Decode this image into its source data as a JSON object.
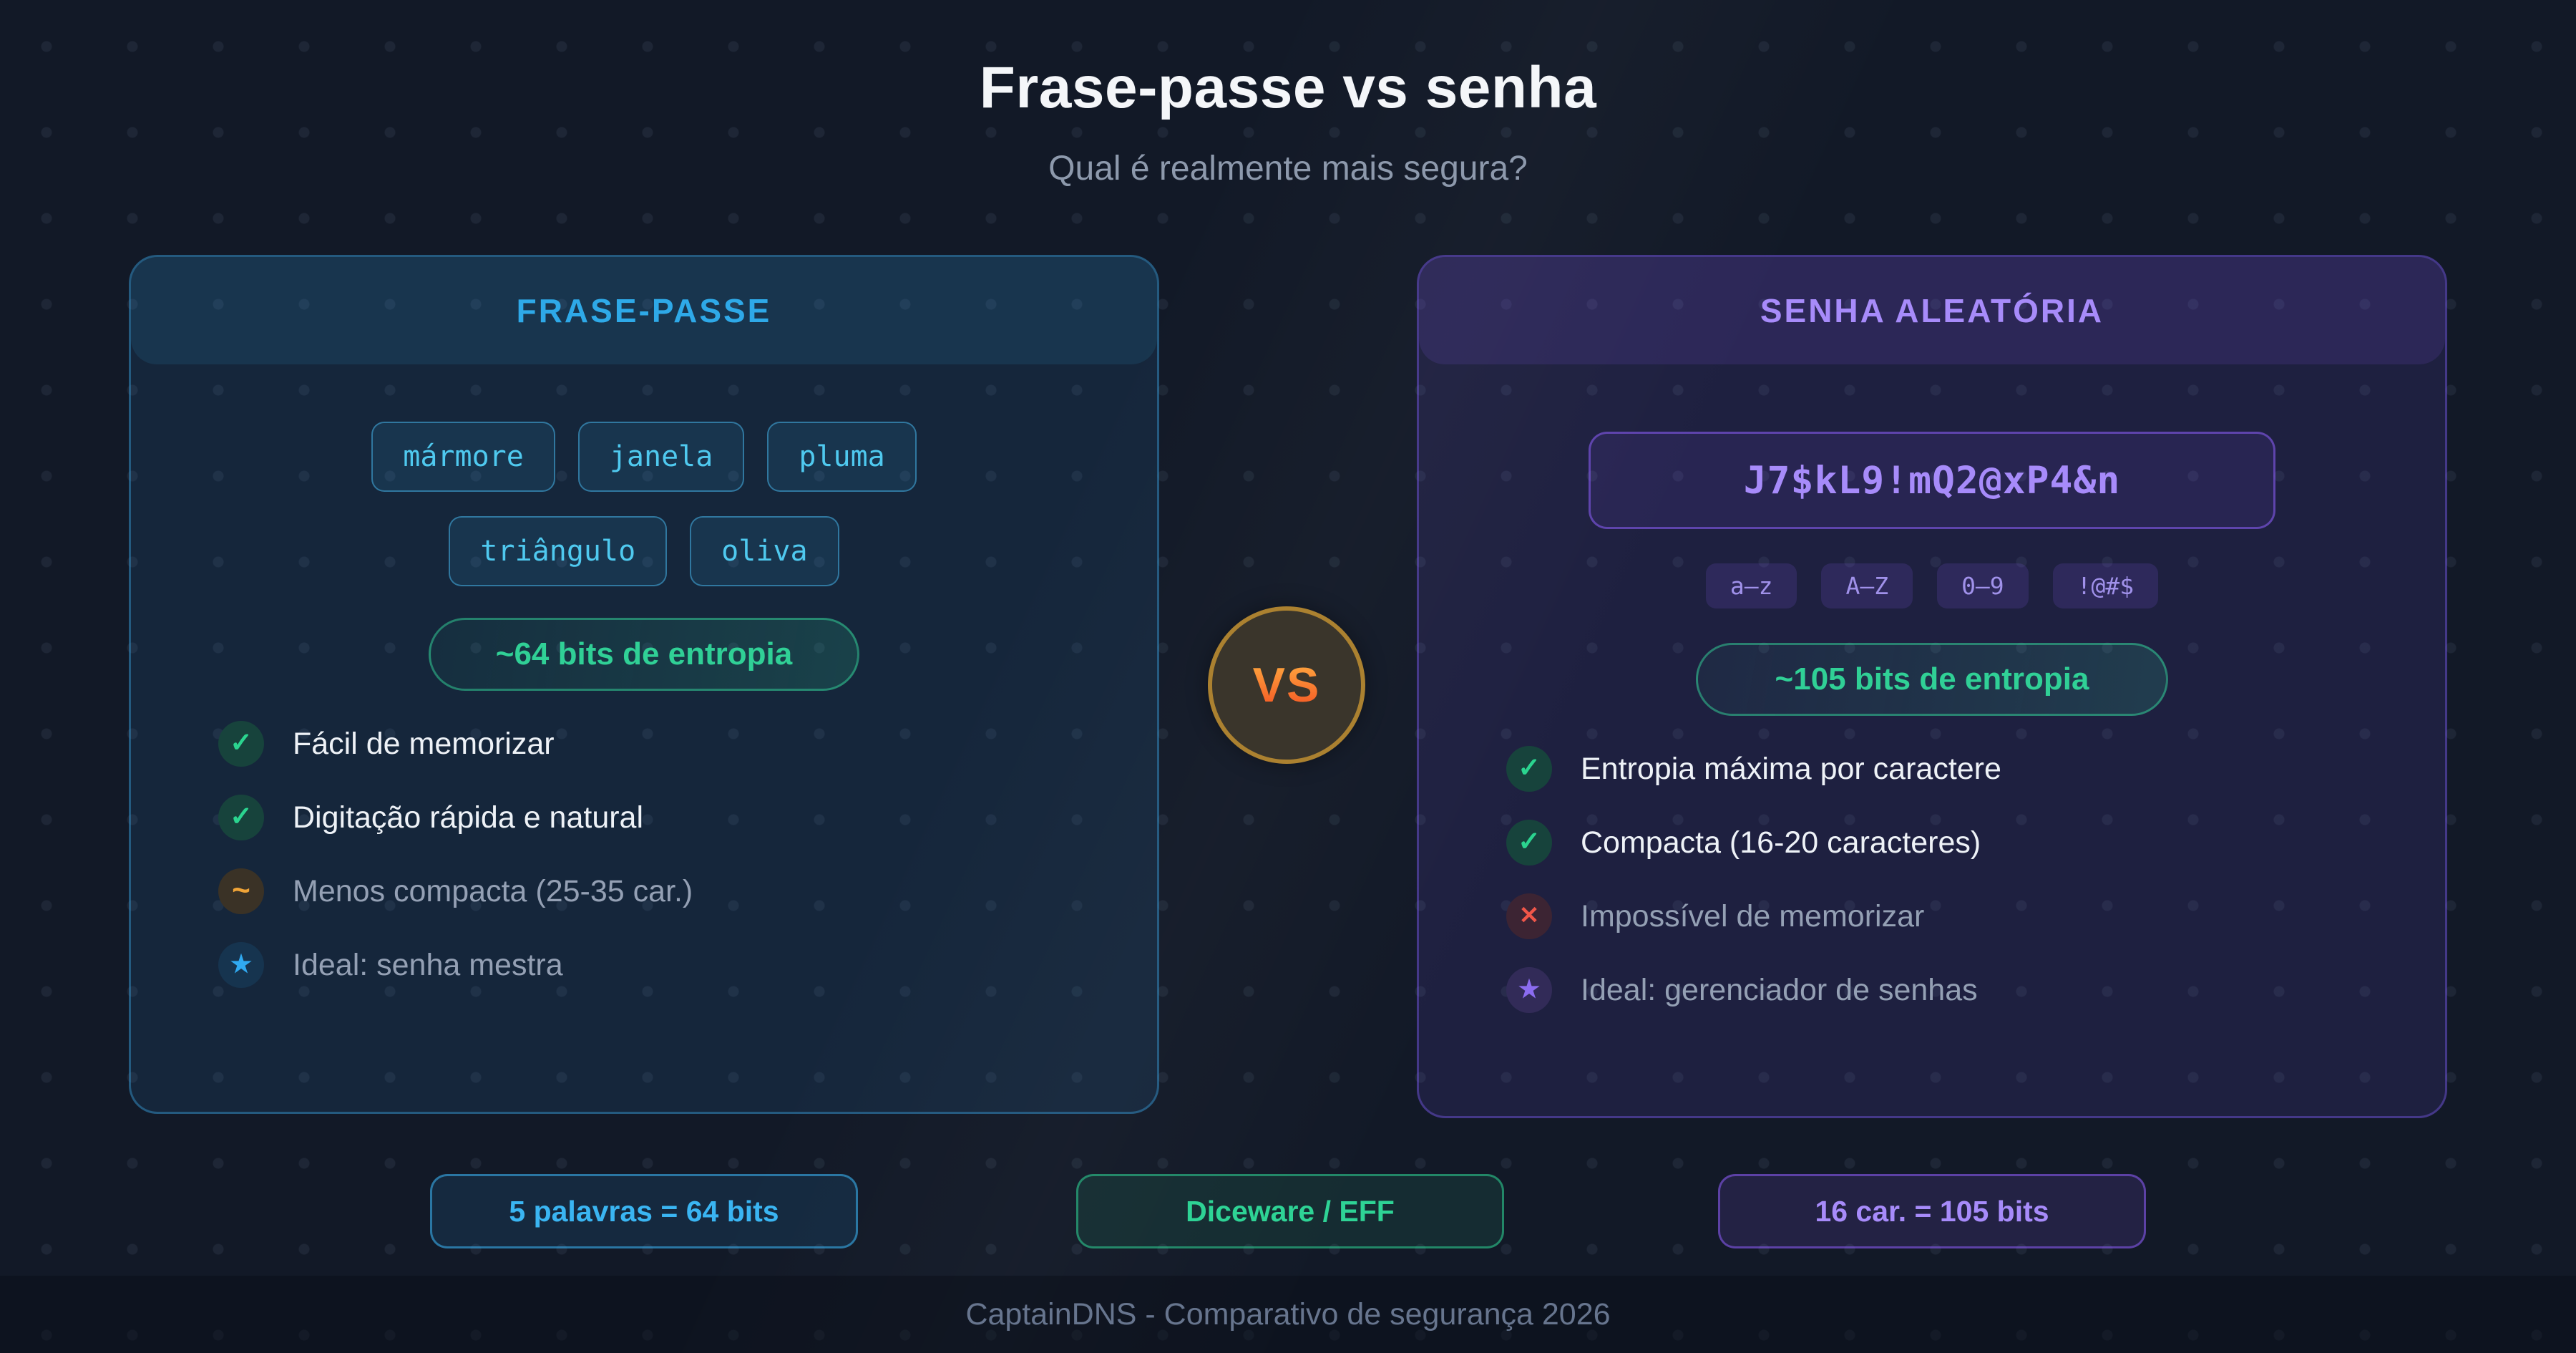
{
  "page": {
    "title": "Frase-passe vs senha",
    "subtitle": "Qual é realmente mais segura?",
    "vs_label": "VS",
    "footer": "CaptainDNS - Comparativo de segurança 2026"
  },
  "icons": {
    "check": "✓",
    "tilde": "~",
    "cross": "✕",
    "star": "★"
  },
  "accents": {
    "cyan": "#2ea9e8",
    "purple": "#a78bfa",
    "green": "#30d096",
    "orange": "#f0a437",
    "red": "#ef5649",
    "vs_gradient_top": "#ffb042",
    "vs_gradient_bottom": "#f34f21",
    "background": "#121927"
  },
  "left_card": {
    "header": "FRASE-PASSE",
    "words": [
      "mármore",
      "janela",
      "pluma",
      "triângulo",
      "oliva"
    ],
    "entropy_badge": "~64 bits de entropia",
    "items": [
      {
        "icon": "check",
        "text": "Fácil de memorizar"
      },
      {
        "icon": "check",
        "text": "Digitação rápida e natural"
      },
      {
        "icon": "tilde",
        "text": "Menos compacta (25-35 car.)"
      },
      {
        "icon": "star",
        "text": "Ideal: senha mestra"
      }
    ],
    "stat_badge": "5 palavras = 64 bits"
  },
  "right_card": {
    "header": "SENHA ALEATÓRIA",
    "password": "J7$kL9!mQ2@xP4&n",
    "charsets": [
      "a–z",
      "A–Z",
      "0–9",
      "!@#$"
    ],
    "entropy_badge": "~105 bits de entropia",
    "items": [
      {
        "icon": "check",
        "text": "Entropia máxima por caractere"
      },
      {
        "icon": "check",
        "text": "Compacta (16-20 caracteres)"
      },
      {
        "icon": "cross",
        "text": "Impossível de memorizar"
      },
      {
        "icon": "star",
        "text": "Ideal: gerenciador de senhas"
      }
    ],
    "stat_badge": "16 car. = 105 bits"
  },
  "center_stat_badge": "Diceware / EFF"
}
